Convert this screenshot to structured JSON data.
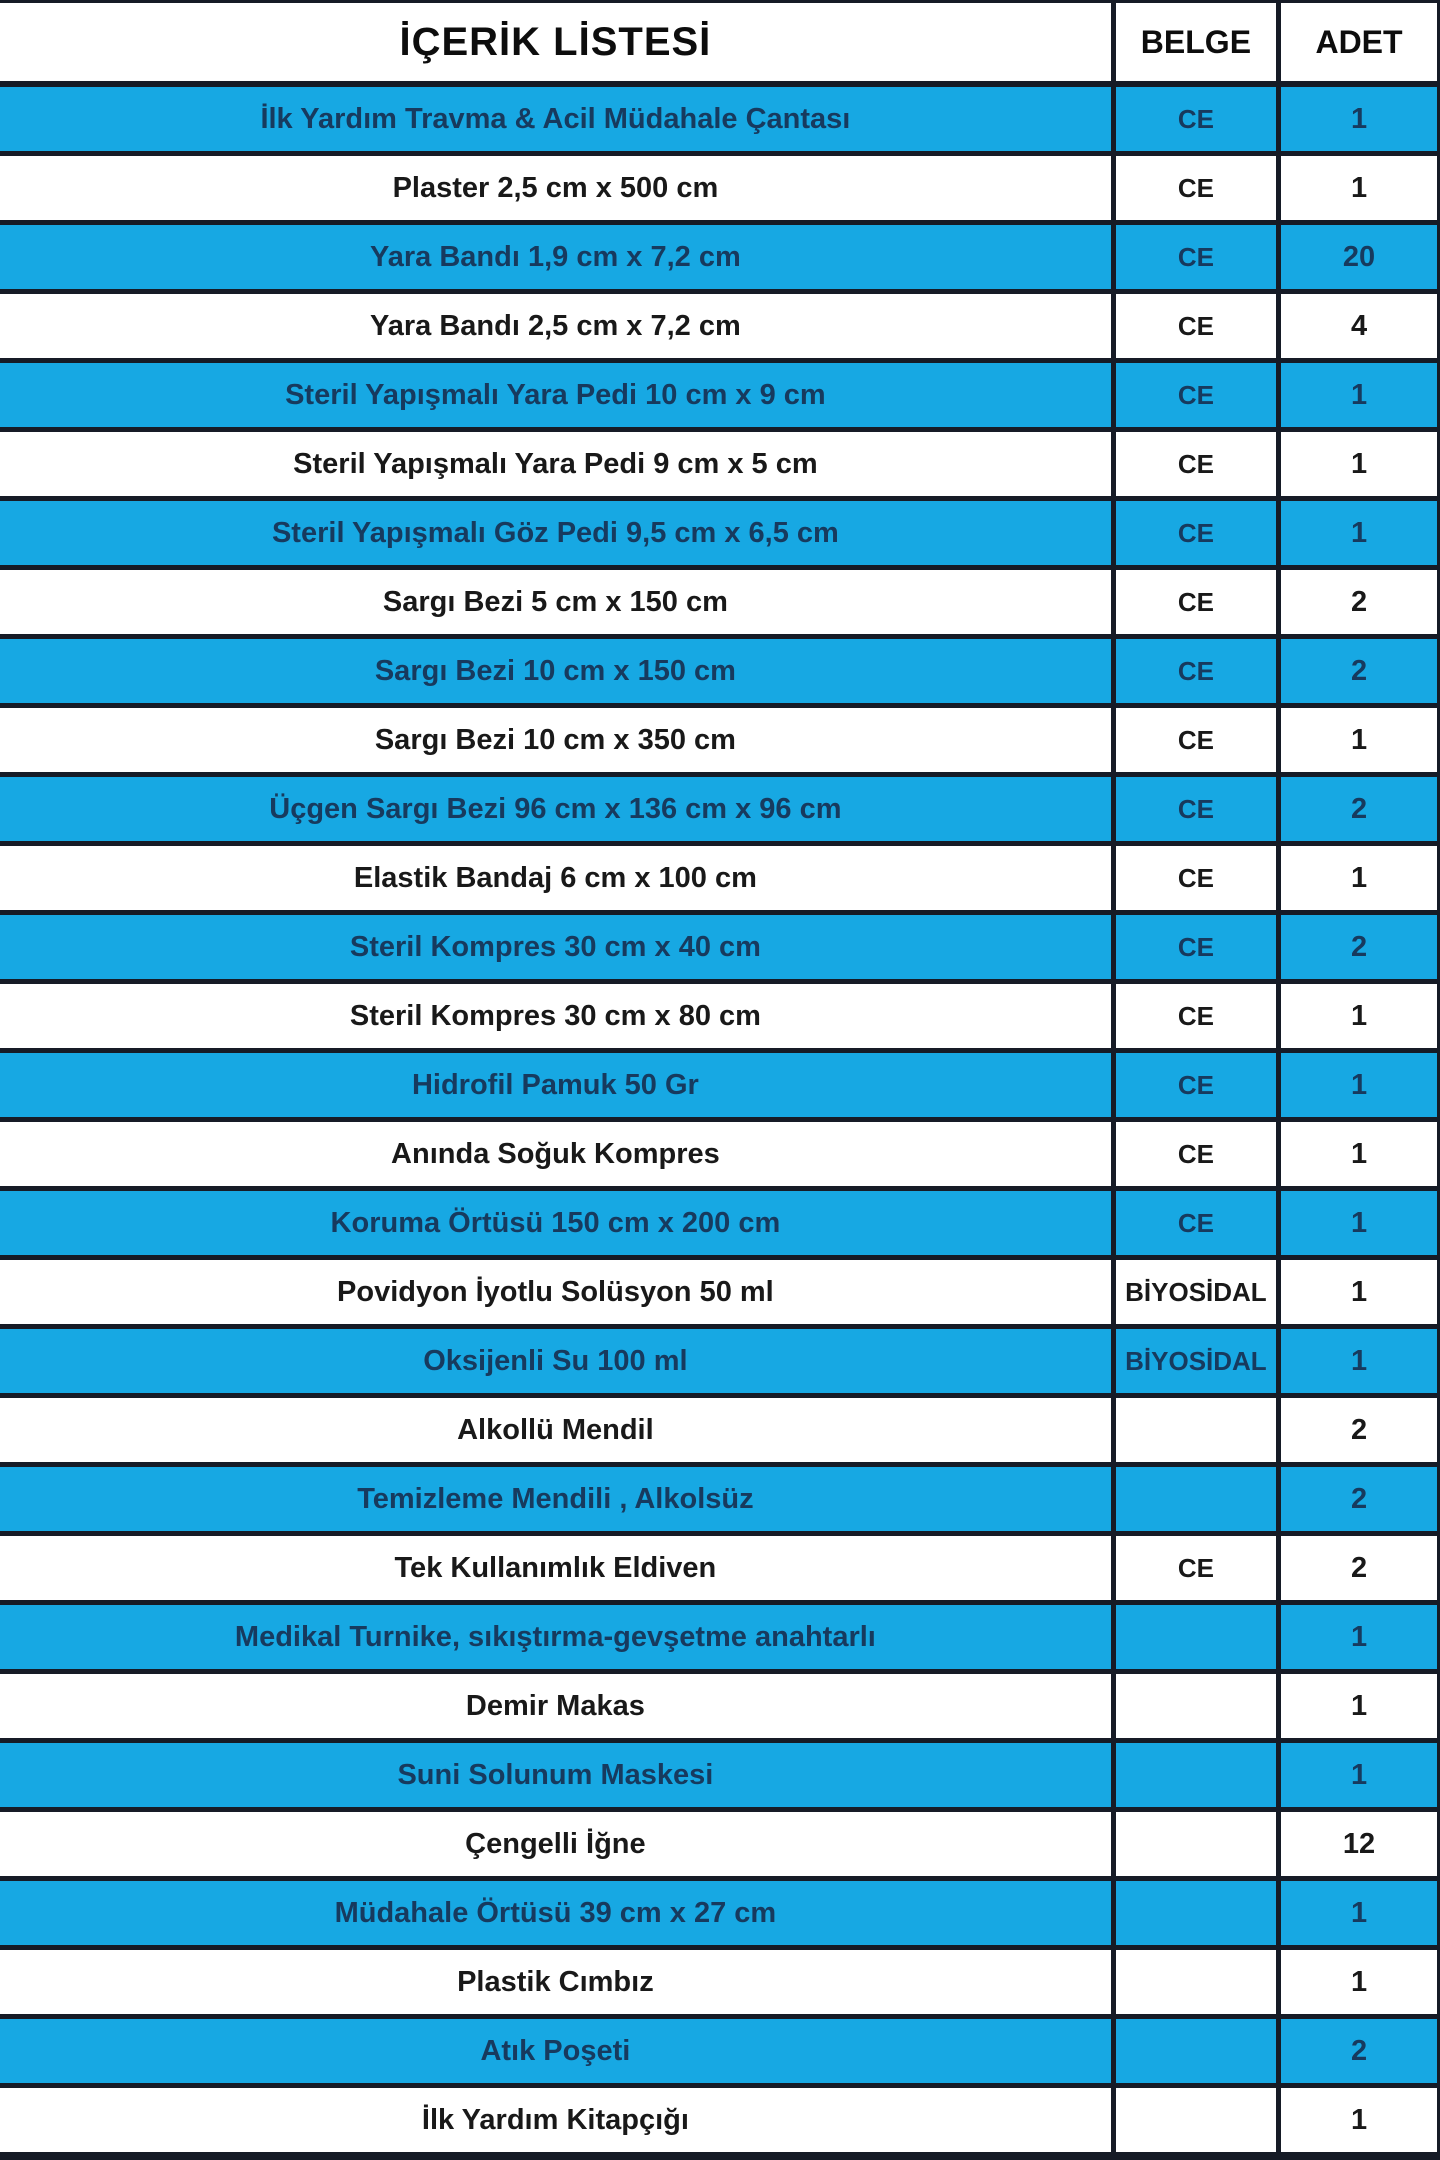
{
  "table": {
    "title": "İÇERİK LİSTESİ",
    "columns": {
      "belge": "BELGE",
      "adet": "ADET"
    },
    "colors": {
      "row_blue": "#17a8e3",
      "row_white": "#ffffff",
      "border": "#161b26",
      "text_on_blue": "#173a5e",
      "text_on_white": "#191919"
    },
    "rows": [
      {
        "item": "İlk Yardım Travma & Acil Müdahale Çantası",
        "belge": "CE",
        "adet": "1"
      },
      {
        "item": "Plaster 2,5 cm x 500 cm",
        "belge": "CE",
        "adet": "1"
      },
      {
        "item": "Yara Bandı 1,9 cm x 7,2 cm",
        "belge": "CE",
        "adet": "20"
      },
      {
        "item": "Yara Bandı 2,5 cm x 7,2 cm",
        "belge": "CE",
        "adet": "4"
      },
      {
        "item": "Steril Yapışmalı Yara Pedi 10 cm x 9 cm",
        "belge": "CE",
        "adet": "1"
      },
      {
        "item": "Steril Yapışmalı Yara Pedi 9 cm x 5 cm",
        "belge": "CE",
        "adet": "1"
      },
      {
        "item": "Steril Yapışmalı Göz Pedi 9,5 cm x 6,5 cm",
        "belge": "CE",
        "adet": "1"
      },
      {
        "item": "Sargı Bezi 5 cm x 150 cm",
        "belge": "CE",
        "adet": "2"
      },
      {
        "item": "Sargı Bezi 10 cm x 150 cm",
        "belge": "CE",
        "adet": "2"
      },
      {
        "item": "Sargı Bezi 10 cm x 350 cm",
        "belge": "CE",
        "adet": "1"
      },
      {
        "item": "Üçgen Sargı Bezi 96 cm x 136 cm x 96 cm",
        "belge": "CE",
        "adet": "2"
      },
      {
        "item": "Elastik Bandaj 6 cm x 100 cm",
        "belge": "CE",
        "adet": "1"
      },
      {
        "item": "Steril Kompres 30 cm x 40 cm",
        "belge": "CE",
        "adet": "2"
      },
      {
        "item": "Steril Kompres 30 cm x 80 cm",
        "belge": "CE",
        "adet": "1"
      },
      {
        "item": "Hidrofil Pamuk 50 Gr",
        "belge": "CE",
        "adet": "1"
      },
      {
        "item": "Anında Soğuk Kompres",
        "belge": "CE",
        "adet": "1"
      },
      {
        "item": "Koruma Örtüsü 150 cm x 200 cm",
        "belge": "CE",
        "adet": "1"
      },
      {
        "item": "Povidyon İyotlu Solüsyon 50 ml",
        "belge": "BİYOSİDAL",
        "adet": "1"
      },
      {
        "item": "Oksijenli Su 100 ml",
        "belge": "BİYOSİDAL",
        "adet": "1"
      },
      {
        "item": "Alkollü Mendil",
        "belge": "",
        "adet": "2"
      },
      {
        "item": "Temizleme Mendili , Alkolsüz",
        "belge": "",
        "adet": "2"
      },
      {
        "item": "Tek Kullanımlık Eldiven",
        "belge": "CE",
        "adet": "2"
      },
      {
        "item": "Medikal Turnike, sıkıştırma-gevşetme anahtarlı",
        "belge": "",
        "adet": "1"
      },
      {
        "item": "Demir Makas",
        "belge": "",
        "adet": "1"
      },
      {
        "item": "Suni Solunum Maskesi",
        "belge": "",
        "adet": "1"
      },
      {
        "item": "Çengelli İğne",
        "belge": "",
        "adet": "12"
      },
      {
        "item": "Müdahale Örtüsü 39 cm x 27 cm",
        "belge": "",
        "adet": "1"
      },
      {
        "item": "Plastik Cımbız",
        "belge": "",
        "adet": "1"
      },
      {
        "item": "Atık Poşeti",
        "belge": "",
        "adet": "2"
      },
      {
        "item": "İlk Yardım Kitapçığı",
        "belge": "",
        "adet": "1"
      }
    ]
  }
}
